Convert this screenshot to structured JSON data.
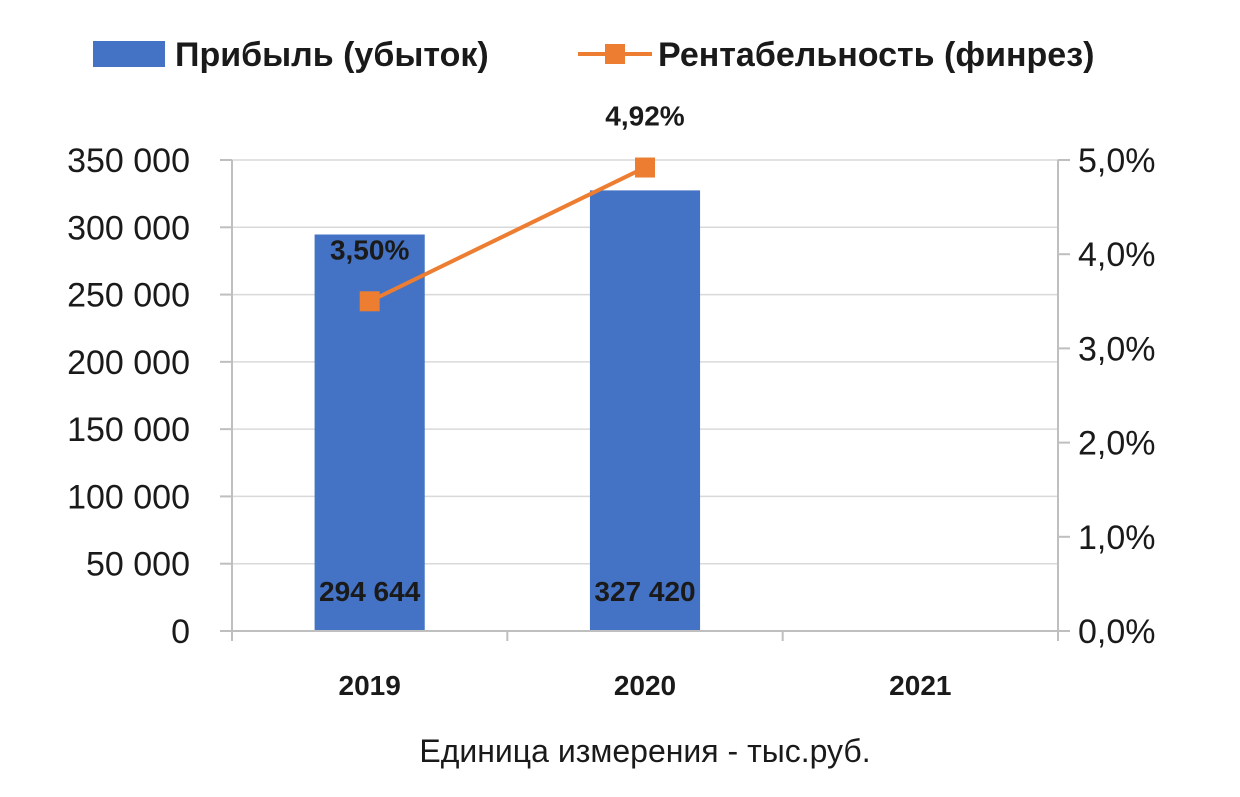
{
  "chart_data": {
    "type": "bar",
    "categories": [
      "2019",
      "2020",
      "2021"
    ],
    "series": [
      {
        "name": "Прибыль (убыток)",
        "chart_type": "bar",
        "axis": "left",
        "values": [
          294644,
          327420,
          null
        ],
        "value_labels": [
          "294 644",
          "327 420",
          ""
        ],
        "color": "#4472C4"
      },
      {
        "name": "Рентабельность (финрез)",
        "chart_type": "line",
        "axis": "right",
        "marker": "square",
        "values": [
          3.5,
          4.92,
          null
        ],
        "value_labels": [
          "3,50%",
          "4,92%",
          ""
        ],
        "color": "#ED7D31"
      }
    ],
    "xlabel": "Единица измерения - тыс.руб.",
    "ylim": [
      0,
      350000
    ],
    "y2lim": [
      0,
      5.0
    ],
    "y_ticks": [
      0,
      50000,
      100000,
      150000,
      200000,
      250000,
      300000,
      350000
    ],
    "y_tick_labels": [
      "0",
      "50 000",
      "100 000",
      "150 000",
      "200 000",
      "250 000",
      "300 000",
      "350 000"
    ],
    "y2_ticks": [
      0,
      1,
      2,
      3,
      4,
      5
    ],
    "y2_tick_labels": [
      "0,0%",
      "1,0%",
      "2,0%",
      "3,0%",
      "4,0%",
      "5,0%"
    ],
    "grid": true,
    "legend_position": "top"
  }
}
